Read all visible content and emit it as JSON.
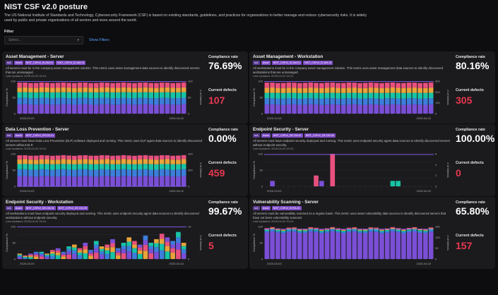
{
  "page": {
    "title": "NIST CSF v2.0 posture",
    "description": "The US National Institute of Standards and Technology, Cybersecurity Framework (CSF) is based on existing standards, guidelines, and practices for organizations to better manage and reduce cybersecurity risks. It is widely used by public and private organizations of all sectors and sizes around the world.",
    "filter_label": "Filter",
    "filter_placeholder": "Select...",
    "show_filters": "Show Filters"
  },
  "labels": {
    "compliance_rate": "Compliance rate",
    "current_defects": "Current defects",
    "y_left": "Compliance %",
    "y_right": "# of Defects",
    "x_start": "2025-03-03",
    "x_end": "2025-04-02"
  },
  "colors": {
    "background": "#0d0d0f",
    "card": "#1b1b1e",
    "tag": "#7e4cc7",
    "defects_red": "#e8384f",
    "link_blue": "#5aa0ff",
    "stack": [
      "#7a4fd6",
      "#3d7ddb",
      "#17c3a6",
      "#e8a33a",
      "#e8507e"
    ],
    "pass_line": "#8b5cf6"
  },
  "cards": [
    {
      "title": "Asset Management - Server",
      "tags": [
        "nc1",
        "Asset",
        "NIST_CSFv2_ID.AM-01",
        "NIST_CSFv2_ID.AM-02"
      ],
      "description": "All servers must be in the company asset management solution. This metric uses asset management data sources to identify discovered servers that are unmanaged.",
      "updated": "Last Updated: 2025-04-02 01:01",
      "compliance_rate": "76.69%",
      "current_defects": "107",
      "chart_data": {
        "type": "bar",
        "stacked": true,
        "y_right_ticks": [
          "0",
          "50",
          "100"
        ],
        "y_left_ticks": [
          "0",
          "50",
          "100"
        ],
        "bar_count": 31,
        "defect_stack": [
          32,
          22,
          20,
          16,
          17
        ],
        "compliance_line": 99
      }
    },
    {
      "title": "Asset Management - Workstation",
      "tags": [
        "nc1",
        "Asset",
        "NIST_CSFv2_ID.AM-01",
        "NIST_CSFv2_ID.AM-02"
      ],
      "description": "All workstations must be in the company asset management solution. This metric uses asset management data sources to identify discovered workstations that are unmanaged.",
      "updated": "Last Updated: 2025-04-02 01:01",
      "compliance_rate": "80.16%",
      "current_defects": "305",
      "chart_data": {
        "type": "bar",
        "stacked": true,
        "y_right_ticks": [
          "0",
          "100",
          "200",
          "300"
        ],
        "y_left_ticks": [
          "0",
          "50",
          "100"
        ],
        "bar_count": 31,
        "defect_stack": [
          90,
          60,
          55,
          50,
          50
        ],
        "compliance_line": 99
      }
    },
    {
      "title": "Data Loss Prevention - Server",
      "tags": [
        "hc1",
        "Asset",
        "NIST_CSFv2_PR.DS-01"
      ],
      "description": "All servers must have Data Loss Prevention (DLP) software deployed and running. This metric uses DLP agent data sources to identify discovered servers without DLP.",
      "updated": "Last Updated: 2025-04-02 01:01",
      "compliance_rate": "0.00%",
      "current_defects": "459",
      "chart_data": {
        "type": "bar",
        "stacked": true,
        "y_right_ticks": [
          "0",
          "200",
          "400"
        ],
        "y_left_ticks": [
          "0",
          "50",
          "100"
        ],
        "bar_count": 31,
        "defect_stack": [
          150,
          100,
          80,
          70,
          59
        ],
        "compliance_line": 0
      }
    },
    {
      "title": "Endpoint Security - Server",
      "tags": [
        "nc1",
        "Asset",
        "NIST_CSFv2_DE.CM-01",
        "NIST_CSFv2_DE.CM-09"
      ],
      "description": "All servers must have endpoint security deployed and running. This metric uses endpoint security agent data sources to identify discovered servers without endpoint security.",
      "updated": "Last Updated: 2025-04-02 01:01",
      "compliance_rate": "100.00%",
      "current_defects": "0",
      "chart_data": {
        "type": "bar",
        "stacked": false,
        "y_right_ticks": [
          "0",
          "2",
          "4",
          "6"
        ],
        "y_left_ticks": [
          "0",
          "50",
          "100"
        ],
        "bar_count": 31,
        "sparse_bars": [
          [
            1,
            1,
            0
          ],
          [
            9,
            2,
            4
          ],
          [
            10,
            1,
            0
          ],
          [
            12,
            6,
            4
          ],
          [
            23,
            1,
            2
          ],
          [
            24,
            1,
            2
          ]
        ],
        "compliance_line": 98
      }
    },
    {
      "title": "Endpoint Security - Workstation",
      "tags": [
        "nc1",
        "Asset",
        "NIST_CSFv2_DE.CM-01",
        "NIST_CSFv2_DE.CM-09"
      ],
      "description": "All workstations must have endpoint security deployed and running. This metric uses endpoint security agent data sources to identify discovered workstations without endpoint security.",
      "updated": "Last Updated: 2025-04-02 01:01",
      "compliance_rate": "99.67%",
      "current_defects": "5",
      "chart_data": {
        "type": "bar",
        "stacked": true,
        "y_right_ticks": [
          "0",
          "10"
        ],
        "y_left_ticks": [
          "0",
          "50",
          "100"
        ],
        "bar_count": 31,
        "variable_bars": [
          3,
          2,
          3,
          4,
          4,
          3,
          5,
          6,
          4,
          7,
          8,
          6,
          9,
          5,
          10,
          7,
          8,
          11,
          6,
          9,
          12,
          10,
          8,
          13,
          9,
          11,
          14,
          12,
          10,
          15,
          9
        ],
        "compliance_line": 99
      }
    },
    {
      "title": "Vulnerability Scanning - Server",
      "tags": [
        "nc1",
        "Asset",
        "NIST_CSFv2_ID.RA-01"
      ],
      "description": "All servers must be vulnerability scanned on a regular basis. This metric uses asset vulnerability data sources to identify discovered servers that have not been vulnerability scanned.",
      "updated": "Last Updated: 2025-04-02 01:01",
      "compliance_rate": "65.80%",
      "current_defects": "157",
      "chart_data": {
        "type": "bar",
        "stacked": true,
        "y_right_ticks": [
          "0",
          "50",
          "100",
          "150"
        ],
        "y_left_ticks": [
          "0",
          "50",
          "100"
        ],
        "bar_count": 31,
        "defect_stack": [
          135,
          8,
          6,
          4,
          4
        ],
        "compliance_line": 92
      }
    }
  ]
}
